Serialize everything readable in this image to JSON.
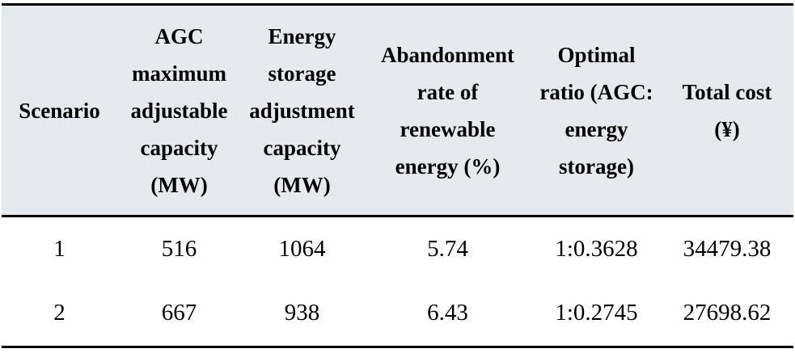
{
  "table": {
    "headers": [
      "Scenario",
      "AGC maximum adjustable capacity (MW)",
      "Energy storage adjustment capacity (MW)",
      "Abandonment rate of renewable energy (%)",
      "Optimal ratio (AGC: energy storage)",
      "Total cost (¥)"
    ],
    "rows": [
      [
        "1",
        "516",
        "1064",
        "5.74",
        "1:0.3628",
        "34479.38"
      ],
      [
        "2",
        "667",
        "938",
        "6.43",
        "1:0.2745",
        "27698.62"
      ]
    ]
  },
  "colors": {
    "header_background": "#e6eaee",
    "rule": "#000000",
    "text": "#000000"
  }
}
